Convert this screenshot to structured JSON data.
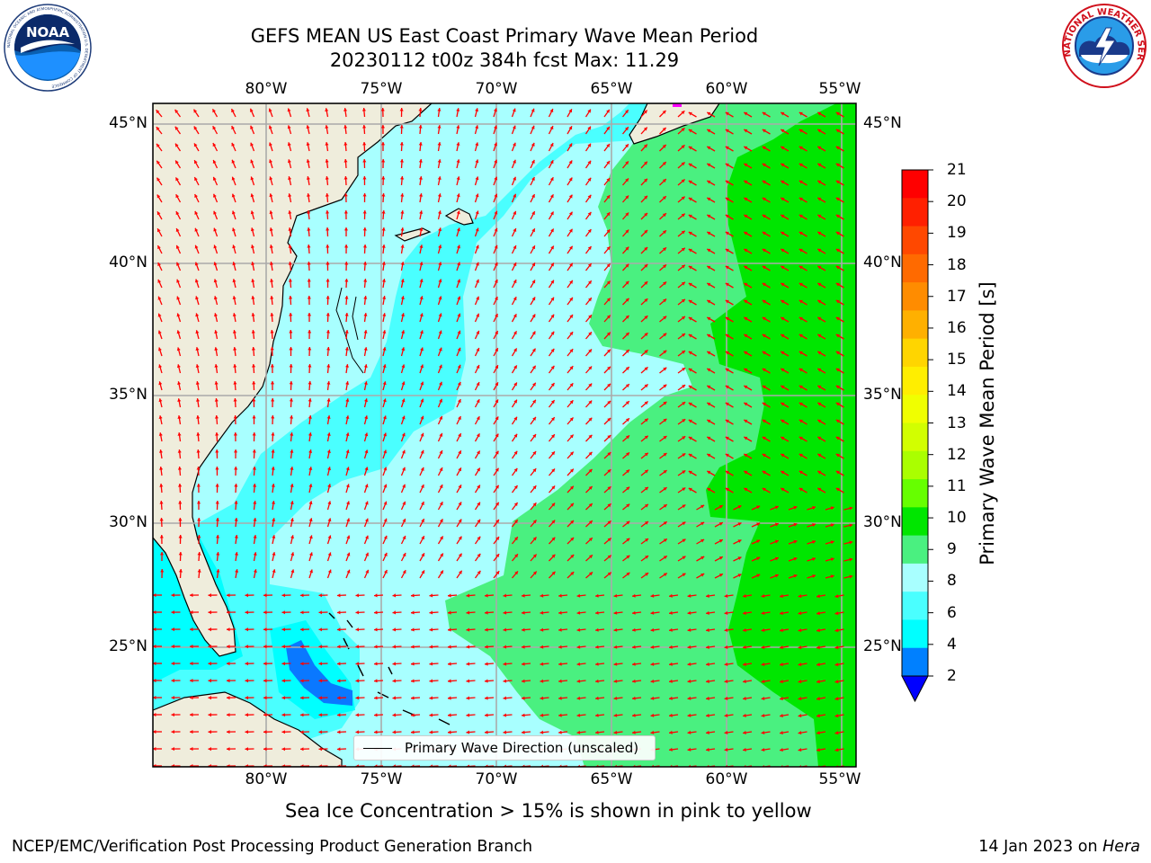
{
  "title": {
    "line1": "GEFS MEAN US East Coast Primary Wave Mean Period",
    "line2": "20230112 t00z 384h fcst   Max: 11.29"
  },
  "logos": {
    "noaa": {
      "text": "NOAA",
      "icon": "noaa-logo-icon",
      "ring_text": "NATIONAL OCEANIC AND ATMOSPHERIC ADMINISTRATION  U.S. DEPARTMENT OF COMMERCE"
    },
    "nws": {
      "icon": "nws-logo-icon",
      "ring_text": "NATIONAL WEATHER SERVICE"
    }
  },
  "map": {
    "lon_ticks": [
      "80°W",
      "75°W",
      "70°W",
      "65°W",
      "60°W",
      "55°W"
    ],
    "lat_ticks": [
      "45°N",
      "40°N",
      "35°N",
      "30°N",
      "25°N"
    ],
    "lon_range": [
      -85,
      -54.3
    ],
    "lat_range": [
      20.3,
      45.8
    ],
    "grid": true,
    "land_color": "#efeddc",
    "coast_color": "#000000",
    "arrow_color": "#ff0000"
  },
  "legend": {
    "label": "Primary Wave Direction (unscaled)",
    "placement": "bottom-center"
  },
  "colorbar": {
    "title": "Primary Wave Mean Period [s]",
    "labels": [
      "21",
      "20",
      "19",
      "18",
      "17",
      "16",
      "15",
      "14",
      "13",
      "12",
      "11",
      "10",
      "9",
      "8",
      "6",
      "4",
      "2"
    ],
    "colors": [
      "#ff0000",
      "#ff2000",
      "#ff4800",
      "#ff6a00",
      "#ff8c00",
      "#ffb000",
      "#ffd500",
      "#ffee00",
      "#f0ff00",
      "#d2ff00",
      "#aaff00",
      "#66ff00",
      "#00e600",
      "#4af080",
      "#a8ffff",
      "#4affff",
      "#00ffff",
      "#0080ff"
    ],
    "extend": "min",
    "extend_color": "#0000ff"
  },
  "notes": {
    "ice": "Sea Ice Concentration > 15% is shown in pink to yellow",
    "credit": "NCEP/EMC/Verification Post Processing Product Generation Branch",
    "date": "14 Jan 2023 on ",
    "host": "Hera"
  }
}
